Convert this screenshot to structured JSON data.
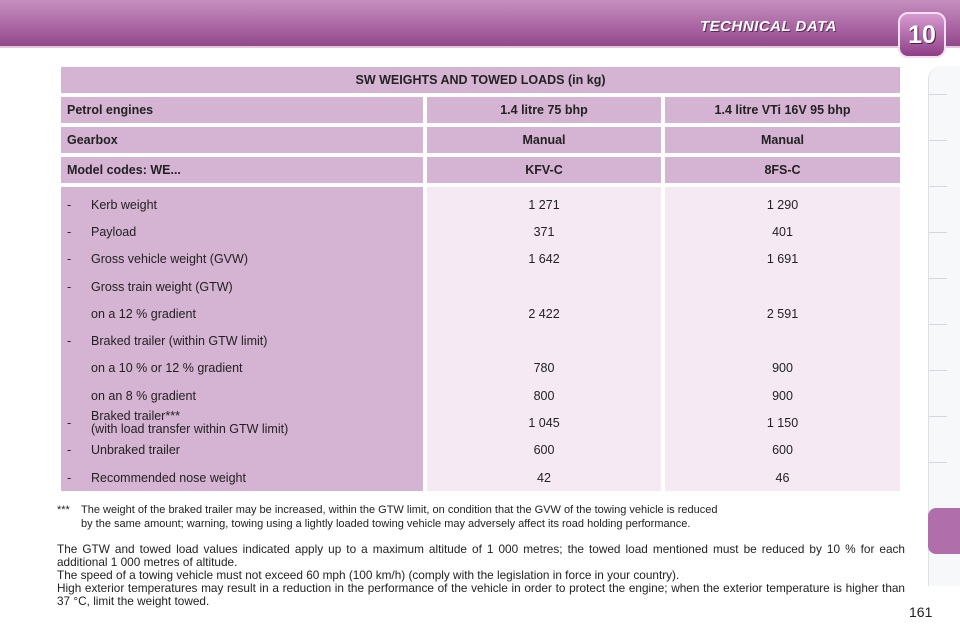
{
  "header": {
    "title": "TECHNICAL DATA",
    "chapter": "10"
  },
  "table": {
    "title": "SW WEIGHTS AND TOWED LOADS (in kg)",
    "header_rows": [
      {
        "label": "Petrol engines",
        "col1": "1.4 litre 75 bhp",
        "col2": "1.4 litre VTi 16V 95 bhp"
      },
      {
        "label": "Gearbox",
        "col1": "Manual",
        "col2": "Manual"
      },
      {
        "label": "Model codes: WE...",
        "col1": "KFV-C",
        "col2": "8FS-C"
      }
    ],
    "rows": [
      {
        "dash": "-",
        "label": "Kerb weight",
        "col1": "1 271",
        "col2": "1 290"
      },
      {
        "dash": "-",
        "label": "Payload",
        "col1": "371",
        "col2": "401"
      },
      {
        "dash": "-",
        "label": "Gross vehicle weight (GVW)",
        "col1": "1 642",
        "col2": "1 691"
      },
      {
        "dash": "-",
        "label": "Gross train weight (GTW)",
        "col1": "",
        "col2": ""
      },
      {
        "dash": "",
        "label": "on a 12 % gradient",
        "col1": "2 422",
        "col2": "2 591"
      },
      {
        "dash": "-",
        "label": "Braked trailer (within GTW limit)",
        "col1": "",
        "col2": ""
      },
      {
        "dash": "",
        "label": "on a 10 % or 12 % gradient",
        "col1": "780",
        "col2": "900"
      },
      {
        "dash": "",
        "label": "on an 8 % gradient",
        "col1": "800",
        "col2": "900"
      },
      {
        "dash": "-",
        "label": "Braked trailer***",
        "label2": "(with load transfer within GTW limit)",
        "col1": "1 045",
        "col2": "1 150"
      },
      {
        "dash": "-",
        "label": "Unbraked trailer",
        "col1": "600",
        "col2": "600"
      },
      {
        "dash": "-",
        "label": "Recommended nose weight",
        "col1": "42",
        "col2": "46"
      }
    ]
  },
  "footnote": {
    "mark": "***",
    "line1": "The weight of the braked trailer may be increased, within the GTW limit, on condition that the GVW of the towing vehicle is reduced",
    "line2": "by the same amount; warning, towing using a lightly loaded towing vehicle may adversely affect its road holding performance."
  },
  "paragraph": {
    "p1": "The GTW and towed load values indicated apply up to a maximum altitude of 1 000 metres; the towed load mentioned must be reduced by 10 % for each additional 1 000 metres of altitude.",
    "p2": "The speed of a towing vehicle must not exceed 60 mph (100 km/h) (comply with the legislation in force in your country).",
    "p3": "High exterior temperatures may result in a reduction in the performance of the vehicle in order to protect the engine; when the exterior temperature is higher than 37 °C, limit the weight towed."
  },
  "page_number": "161",
  "colors": {
    "band": "#a45d9d",
    "header_cell": "#d5b3d2",
    "value_cell": "#f5e9f3",
    "active_tab": "#b06eab"
  }
}
